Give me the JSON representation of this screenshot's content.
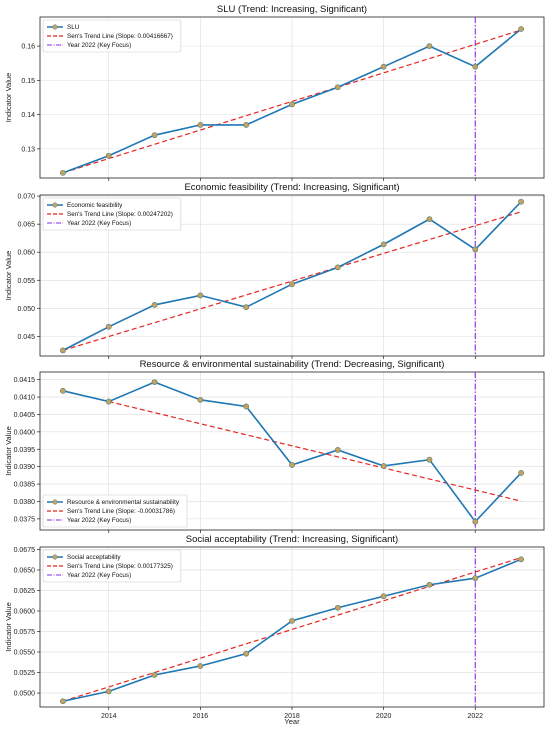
{
  "figure": {
    "xlabel": "Year"
  },
  "chart_data": [
    {
      "type": "line",
      "title": "SLU (Trend: Increasing, Significant)",
      "ylabel": "Indicator Value",
      "x": [
        2013,
        2014,
        2015,
        2016,
        2017,
        2018,
        2019,
        2020,
        2021,
        2022,
        2023
      ],
      "xlim": [
        2012.5,
        2023.5
      ],
      "xticks": [
        2014,
        2016,
        2018,
        2020,
        2022
      ],
      "ylim": [
        0.1215,
        0.1685
      ],
      "yticks": [
        0.13,
        0.14,
        0.15,
        0.16
      ],
      "ytick_labels": [
        "0.13",
        "0.14",
        "0.15",
        "0.16"
      ],
      "series": [
        {
          "name": "SLU",
          "values": [
            0.123,
            0.128,
            0.134,
            0.137,
            0.137,
            0.143,
            0.148,
            0.154,
            0.16,
            0.154,
            0.165
          ],
          "color": "#1f77b4",
          "marker_color": "#c8a25c"
        }
      ],
      "trend": {
        "name": "Sen's Trend Line (Slope: 0.00416667)",
        "start": [
          2013,
          0.123
        ],
        "end": [
          2023,
          0.1647
        ],
        "color": "#e8251f"
      },
      "vline": {
        "name": "Year 2022 (Key Focus)",
        "x": 2022,
        "color": "#8a2be2"
      },
      "legend_position": "upper-left",
      "grid": true
    },
    {
      "type": "line",
      "title": "Economic feasibility (Trend: Increasing, Significant)",
      "ylabel": "Indicator Value",
      "x": [
        2013,
        2014,
        2015,
        2016,
        2017,
        2018,
        2019,
        2020,
        2021,
        2022,
        2023
      ],
      "xlim": [
        2012.5,
        2023.5
      ],
      "xticks": [
        2014,
        2016,
        2018,
        2020,
        2022
      ],
      "ylim": [
        0.0415,
        0.0702
      ],
      "yticks": [
        0.045,
        0.05,
        0.055,
        0.06,
        0.065,
        0.07
      ],
      "ytick_labels": [
        "0.045",
        "0.050",
        "0.055",
        "0.060",
        "0.065",
        "0.070"
      ],
      "series": [
        {
          "name": "Economic feasibility",
          "values": [
            0.0425,
            0.0467,
            0.0506,
            0.0523,
            0.0502,
            0.0543,
            0.0573,
            0.0614,
            0.0659,
            0.0605,
            0.069
          ],
          "color": "#1f77b4",
          "marker_color": "#c8a25c"
        }
      ],
      "trend": {
        "name": "Sen's Trend Line (Slope: 0.00247202)",
        "start": [
          2013,
          0.0425
        ],
        "end": [
          2023,
          0.0672
        ],
        "color": "#e8251f"
      },
      "vline": {
        "name": "Year 2022 (Key Focus)",
        "x": 2022,
        "color": "#8a2be2"
      },
      "legend_position": "upper-left",
      "grid": true
    },
    {
      "type": "line",
      "title": "Resource & environmental sustainability (Trend: Decreasing, Significant)",
      "ylabel": "Indicator Value",
      "x": [
        2013,
        2014,
        2015,
        2016,
        2017,
        2018,
        2019,
        2020,
        2021,
        2022,
        2023
      ],
      "xlim": [
        2012.5,
        2023.5
      ],
      "xticks": [
        2014,
        2016,
        2018,
        2020,
        2022
      ],
      "ylim": [
        0.03718,
        0.04172
      ],
      "yticks": [
        0.0375,
        0.038,
        0.0385,
        0.039,
        0.0395,
        0.04,
        0.0405,
        0.041,
        0.0415
      ],
      "ytick_labels": [
        "0.0375",
        "0.0380",
        "0.0385",
        "0.0390",
        "0.0395",
        "0.0400",
        "0.0405",
        "0.0410",
        "0.0415"
      ],
      "series": [
        {
          "name": "Resource & environmental sustainability",
          "values": [
            0.04118,
            0.04087,
            0.04143,
            0.04092,
            0.04073,
            0.03905,
            0.03948,
            0.03902,
            0.0392,
            0.03742,
            0.03882
          ],
          "color": "#1f77b4",
          "marker_color": "#c8a25c"
        }
      ],
      "trend": {
        "name": "Sen's Trend Line (Slope: -0.00031786)",
        "start": [
          2014,
          0.04087
        ],
        "end": [
          2023,
          0.03801
        ],
        "color": "#e8251f"
      },
      "vline": {
        "name": "Year 2022 (Key Focus)",
        "x": 2022,
        "color": "#8a2be2"
      },
      "legend_position": "lower-left",
      "grid": true
    },
    {
      "type": "line",
      "title": "Social acceptability (Trend: Increasing, Significant)",
      "ylabel": "Indicator Value",
      "x": [
        2013,
        2014,
        2015,
        2016,
        2017,
        2018,
        2019,
        2020,
        2021,
        2022,
        2023
      ],
      "xlim": [
        2012.5,
        2023.5
      ],
      "xticks": [
        2014,
        2016,
        2018,
        2020,
        2022
      ],
      "ylim": [
        0.0483,
        0.0678
      ],
      "yticks": [
        0.05,
        0.0525,
        0.055,
        0.0575,
        0.06,
        0.0625,
        0.065,
        0.0675
      ],
      "ytick_labels": [
        "0.0500",
        "0.0525",
        "0.0550",
        "0.0575",
        "0.0600",
        "0.0625",
        "0.0650",
        "0.0675"
      ],
      "series": [
        {
          "name": "Social acceptability",
          "values": [
            0.049,
            0.0502,
            0.0522,
            0.0533,
            0.0548,
            0.0588,
            0.0604,
            0.0618,
            0.0632,
            0.064,
            0.0663
          ],
          "color": "#1f77b4",
          "marker_color": "#c8a25c"
        }
      ],
      "trend": {
        "name": "Sen's Trend Line (Slope: 0.00177325)",
        "start": [
          2013,
          0.049
        ],
        "end": [
          2023,
          0.0665
        ],
        "color": "#e8251f"
      },
      "vline": {
        "name": "Year 2022 (Key Focus)",
        "x": 2022,
        "color": "#8a2be2"
      },
      "legend_position": "upper-left",
      "grid": true
    }
  ]
}
